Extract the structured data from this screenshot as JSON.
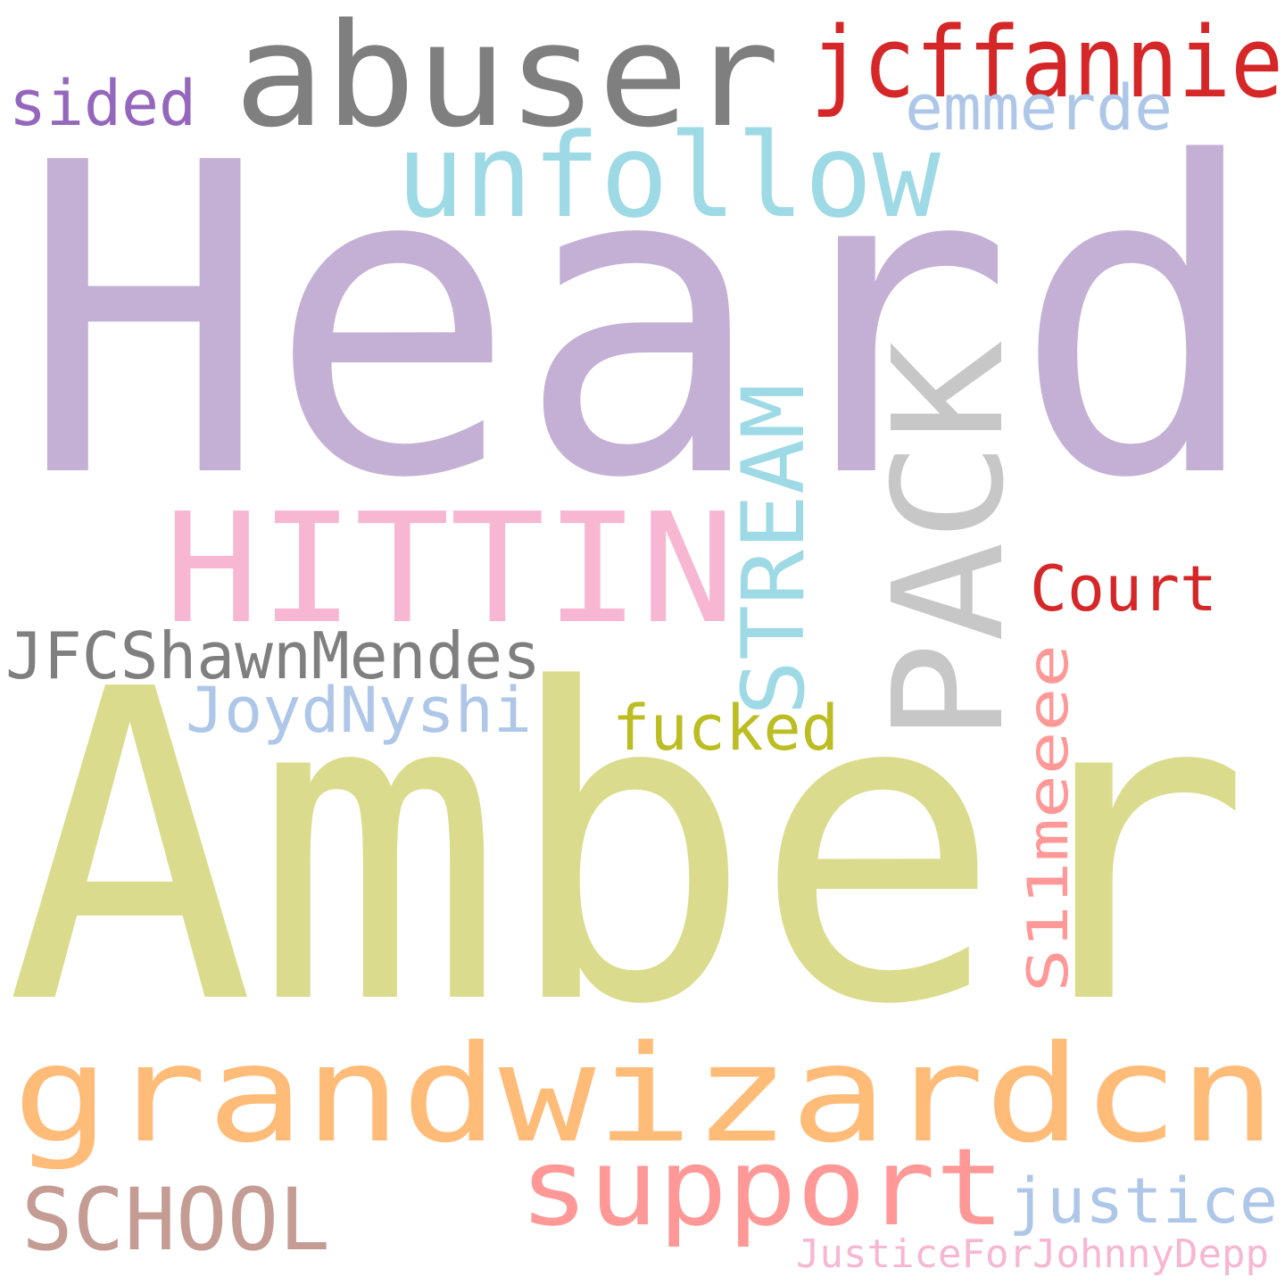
{
  "words": [
    {
      "text": "Heard",
      "color": "#c5b0d5"
    },
    {
      "text": "Amber",
      "color": "#dbdb8d"
    },
    {
      "text": "abuser",
      "color": "#7f7f7f"
    },
    {
      "text": "grandwizardcn",
      "color": "#ffbb78"
    },
    {
      "text": "HITTIN",
      "color": "#f7b6d2"
    },
    {
      "text": "PACK",
      "color": "#c7c7c7"
    },
    {
      "text": "unfollow",
      "color": "#9edae5"
    },
    {
      "text": "support",
      "color": "#ff9896"
    },
    {
      "text": "jcffannie",
      "color": "#d62728"
    },
    {
      "text": "STREAM",
      "color": "#9edae5"
    },
    {
      "text": "SCHOOL",
      "color": "#c49c94"
    },
    {
      "text": "JFCShawnMendes",
      "color": "#7f7f7f"
    },
    {
      "text": "emmerde",
      "color": "#aec7e8"
    },
    {
      "text": "justice",
      "color": "#aec7e8"
    },
    {
      "text": "Court",
      "color": "#d62728"
    },
    {
      "text": "sided",
      "color": "#9467bd"
    },
    {
      "text": "JoydNyshi",
      "color": "#aec7e8"
    },
    {
      "text": "fucked",
      "color": "#bcbd22"
    },
    {
      "text": "S11meeee",
      "color": "#ff9896"
    },
    {
      "text": "JusticeForJohnnyDepp",
      "color": "#f7b6d2"
    }
  ]
}
